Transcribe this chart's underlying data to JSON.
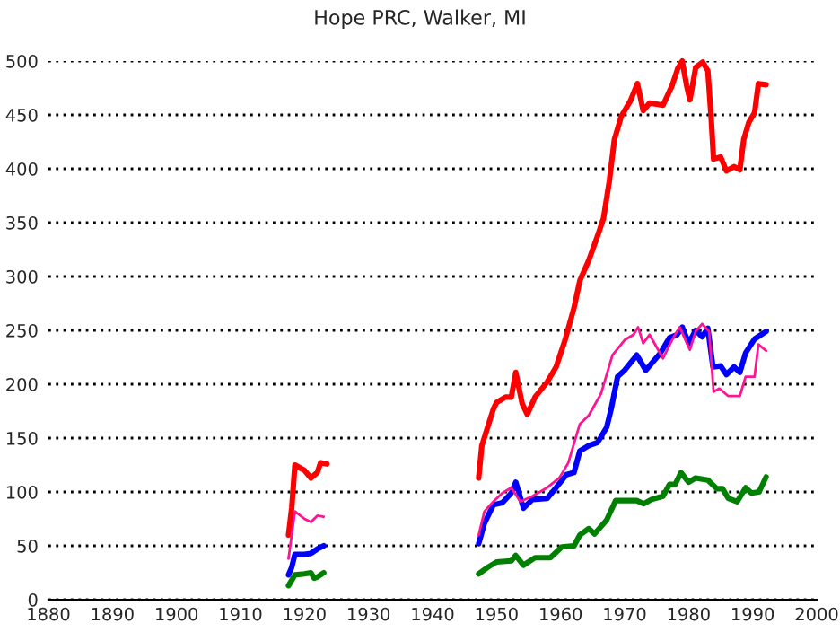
{
  "chart_data": {
    "type": "line",
    "title": "Hope PRC, Walker, MI",
    "xlim": [
      1880,
      2000
    ],
    "xticks": [
      1880,
      1890,
      1900,
      1910,
      1920,
      1930,
      1940,
      1950,
      1960,
      1970,
      1980,
      1990,
      2000
    ],
    "ylim": [
      0,
      500
    ],
    "yticks": [
      0,
      50,
      100,
      150,
      200,
      250,
      300,
      350,
      400,
      450,
      500
    ],
    "grid": "y",
    "legend": false,
    "marker": "none",
    "line_style": "solid",
    "series": [
      {
        "color": "#ff0000",
        "x": [
          1917.5,
          1918,
          1918.5,
          1920,
          1921,
          1922,
          1922.5,
          1923.5,
          1935,
          1947.2,
          1947.7,
          1948.6,
          1949.5,
          1950,
          1951.4,
          1952.3,
          1953,
          1954,
          1954.8,
          1956,
          1957.9,
          1959.3,
          1960.7,
          1962.1,
          1963,
          1964.4,
          1965.8,
          1966.7,
          1967.6,
          1968.4,
          1969.5,
          1970.9,
          1972,
          1972.9,
          1973.9,
          1976,
          1977.4,
          1978.3,
          1979,
          1979.7,
          1980.2,
          1981.1,
          1982.2,
          1983,
          1983.5,
          1983.9,
          1985,
          1985.9,
          1987.1,
          1988,
          1988.6,
          1989.4,
          1990.3,
          1990.9,
          1992.1
        ],
        "values": [
          60,
          85,
          125,
          120,
          113,
          118,
          127,
          126,
          null,
          113,
          143,
          160,
          177,
          183,
          188,
          188,
          211,
          182,
          172,
          188,
          202,
          216,
          241,
          271,
          296,
          315,
          338,
          354,
          388,
          427,
          449,
          463,
          479,
          454,
          461,
          459,
          477,
          493,
          500,
          477,
          464,
          494,
          499,
          491,
          449,
          409,
          411,
          398,
          402,
          399,
          427,
          443,
          452,
          479,
          478
        ]
      },
      {
        "color": "#0000ff",
        "x": [
          1917.5,
          1918,
          1918.5,
          1920,
          1921,
          1922,
          1923,
          1935,
          1947.2,
          1948.1,
          1949.5,
          1950.9,
          1952.3,
          1953,
          1954.2,
          1955.6,
          1957.9,
          1959.3,
          1960.9,
          1962.1,
          1963,
          1964.4,
          1965.8,
          1967.2,
          1967.9,
          1968.9,
          1970,
          1971.9,
          1973.3,
          1975.6,
          1977,
          1978.2,
          1979,
          1980,
          1981.1,
          1982.1,
          1983,
          1983.8,
          1985,
          1985.9,
          1987.1,
          1988,
          1988.9,
          1990.3,
          1992.1
        ],
        "values": [
          23,
          30,
          42,
          42,
          43,
          47,
          50,
          null,
          52,
          71,
          88,
          90,
          99,
          109,
          85,
          93,
          94,
          104,
          116,
          118,
          138,
          143,
          146,
          160,
          177,
          207,
          213,
          227,
          213,
          229,
          243,
          246,
          253,
          238,
          250,
          244,
          252,
          216,
          217,
          209,
          216,
          211,
          229,
          242,
          249
        ]
      },
      {
        "color": "#ff1493",
        "x": [
          1917.5,
          1918.5,
          1920,
          1921,
          1922,
          1923,
          1935,
          1947.2,
          1948.1,
          1949.5,
          1950.9,
          1952.3,
          1953.7,
          1955.6,
          1957.9,
          1959.8,
          1961.2,
          1963,
          1964.4,
          1966.3,
          1968.1,
          1970,
          1971.4,
          1972.1,
          1972.9,
          1973.9,
          1976,
          1977.4,
          1978.6,
          1980.2,
          1981.1,
          1982.1,
          1983.2,
          1983.9,
          1984.8,
          1986.2,
          1988,
          1988.9,
          1990.3,
          1990.9,
          1992.1
        ],
        "values": [
          38,
          82,
          75,
          72,
          78,
          77,
          null,
          60,
          82,
          91,
          99,
          104,
          91,
          96,
          104,
          113,
          127,
          163,
          171,
          191,
          227,
          241,
          246,
          253,
          238,
          246,
          224,
          241,
          253,
          232,
          249,
          256,
          249,
          193,
          196,
          189,
          189,
          207,
          207,
          237,
          231
        ]
      },
      {
        "color": "#008000",
        "x": [
          1917.5,
          1918,
          1918.5,
          1920,
          1921,
          1921.5,
          1922,
          1923,
          1935,
          1947.2,
          1948.6,
          1950,
          1952.3,
          1953,
          1954.2,
          1956,
          1958.4,
          1960.2,
          1962.1,
          1963,
          1964.4,
          1965.3,
          1967.2,
          1968.6,
          1971.9,
          1973,
          1974.2,
          1976,
          1977,
          1977.9,
          1978.8,
          1980,
          1981.1,
          1983,
          1984.4,
          1985.3,
          1986.2,
          1987.6,
          1988.9,
          1989.8,
          1991,
          1992.1
        ],
        "values": [
          13,
          18,
          23,
          24,
          25,
          20,
          21,
          25,
          null,
          24,
          30,
          35,
          36,
          41,
          32,
          39,
          39,
          49,
          50,
          60,
          66,
          61,
          74,
          92,
          92,
          89,
          93,
          96,
          107,
          107,
          118,
          109,
          113,
          111,
          103,
          103,
          94,
          91,
          104,
          99,
          100,
          114
        ]
      }
    ]
  }
}
